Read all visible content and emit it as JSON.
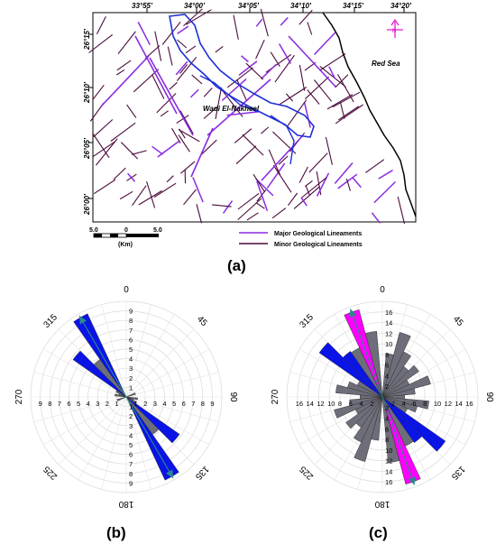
{
  "map": {
    "top_lon_labels": [
      "33°55'",
      "34°00'",
      "34°05'",
      "34°10'",
      "34°15'",
      "34°20'"
    ],
    "left_lat_labels": [
      "26°15'",
      "26°10'",
      "26°05'",
      "26°00'"
    ],
    "sea_label": "Red Sea",
    "wadi_label": "Wadi El-Nakheel",
    "north_label": "N",
    "scale": {
      "left": "5.0",
      "mid": "0",
      "right": "5.0",
      "unit": "(Km)"
    },
    "legend": [
      {
        "label": "Major Geological Lineaments",
        "color": "#8a2be2"
      },
      {
        "label": "Minor Geological Lineaments",
        "color": "#4b0a3c"
      }
    ],
    "colors": {
      "major": "#8a2be2",
      "minor": "#4b0a3c",
      "wadi": "#1e2fd6",
      "coast": "#000000",
      "north": "#e020d0"
    }
  },
  "panel_labels": {
    "a": "(a)",
    "b": "(b)",
    "c": "(c)"
  },
  "rose_b": {
    "angle_labels": [
      "0",
      "45",
      "90",
      "135",
      "180",
      "225",
      "270",
      "315"
    ],
    "ring_labels": [
      "1",
      "2",
      "3",
      "4",
      "5",
      "6",
      "7",
      "8",
      "9"
    ],
    "max": 10,
    "petals_blue": [
      {
        "angle": 330,
        "value": 9.6
      },
      {
        "angle": 310,
        "value": 6.8
      }
    ],
    "petals_gray": [
      {
        "angle": 320,
        "value": 4.8
      },
      {
        "angle": 300,
        "value": 1.2
      },
      {
        "angle": 70,
        "value": 1.0
      },
      {
        "angle": 100,
        "value": 1.2
      },
      {
        "angle": 290,
        "value": 0.8
      }
    ],
    "mean_vector_angle": 330,
    "colors": {
      "blue": "#0a14e6",
      "gray": "#6e6e7a",
      "arrow": "#2a8a8c"
    }
  },
  "rose_c": {
    "angle_labels": [
      "0",
      "45",
      "90",
      "135",
      "180",
      "225",
      "270",
      "315"
    ],
    "ring_labels": [
      "2",
      "4",
      "6",
      "8",
      "10",
      "12",
      "14",
      "16"
    ],
    "max": 18,
    "petals_blue": [
      {
        "angle": 310,
        "value": 14.5
      },
      {
        "angle": 320,
        "value": 10.5
      }
    ],
    "petals_magenta": [
      {
        "angle": 340,
        "value": 17.0
      }
    ],
    "petals_gray": [
      {
        "angle": 10,
        "value": 8.2
      },
      {
        "angle": 20,
        "value": 12.6
      },
      {
        "angle": 30,
        "value": 9.4
      },
      {
        "angle": 40,
        "value": 7.0
      },
      {
        "angle": 50,
        "value": 8.4
      },
      {
        "angle": 60,
        "value": 5.6
      },
      {
        "angle": 70,
        "value": 9.4
      },
      {
        "angle": 80,
        "value": 6.2
      },
      {
        "angle": 90,
        "value": 4.2
      },
      {
        "angle": 280,
        "value": 8.8
      },
      {
        "angle": 290,
        "value": 6.8
      },
      {
        "angle": 300,
        "value": 5.2
      },
      {
        "angle": 330,
        "value": 10.2
      },
      {
        "angle": 350,
        "value": 12.4
      }
    ],
    "mean_vector_angle": 340,
    "colors": {
      "blue": "#0a14e6",
      "gray": "#6e6e7a",
      "magenta": "#ff00ff",
      "arrow": "#2a8a8c"
    }
  }
}
